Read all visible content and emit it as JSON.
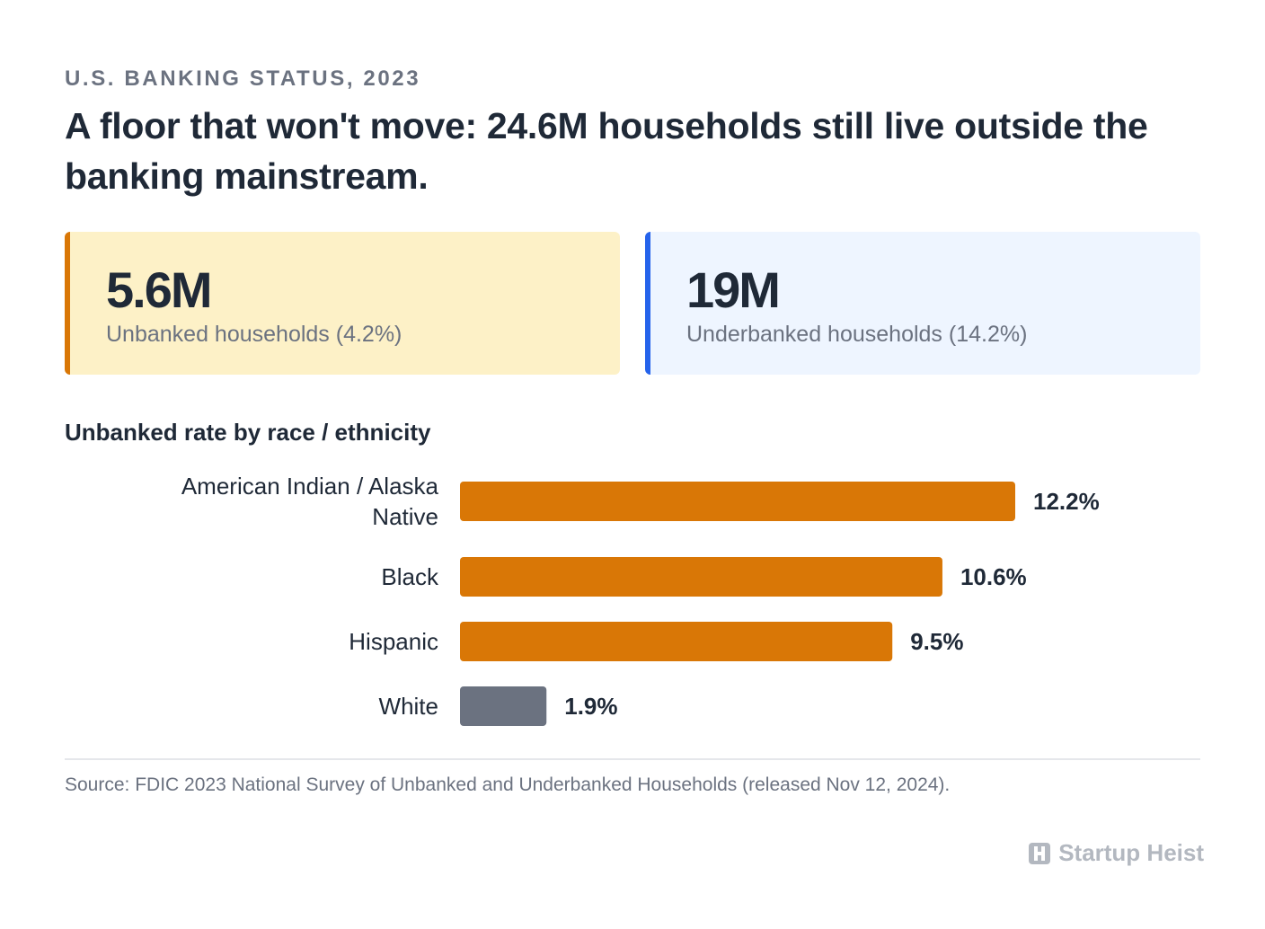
{
  "header": {
    "eyebrow": "U.S. BANKING STATUS, 2023",
    "title": "A floor that won't move: 24.6M households still live outside the banking mainstream."
  },
  "stats": [
    {
      "value": "5.6M",
      "label": "Unbanked households (4.2%)",
      "accent": "#d97706",
      "background": "#fdf1c7"
    },
    {
      "value": "19M",
      "label": "Underbanked households (14.2%)",
      "accent": "#2563eb",
      "background": "#eef5ff"
    }
  ],
  "chart_title": "Unbanked rate by race / ethnicity",
  "chart_data": {
    "type": "bar",
    "orientation": "horizontal",
    "categories": [
      [
        "American Indian / Alaska",
        "Native"
      ],
      [
        "Black"
      ],
      [
        "Hispanic"
      ],
      [
        "White"
      ]
    ],
    "values": [
      12.2,
      10.6,
      9.5,
      1.9
    ],
    "value_labels": [
      "12.2%",
      "10.6%",
      "9.5%",
      "1.9%"
    ],
    "unit": "%",
    "colors": [
      "#d97706",
      "#d97706",
      "#d97706",
      "#6b7280"
    ],
    "xlim": [
      0,
      12.2
    ],
    "grid": false,
    "title": "Unbanked rate by race / ethnicity"
  },
  "footer": {
    "source": "Source: FDIC 2023 National Survey of Unbanked and Underbanked Households (released Nov 12, 2024).",
    "brand": "Startup Heist",
    "brand_icon": "logo-icon"
  }
}
